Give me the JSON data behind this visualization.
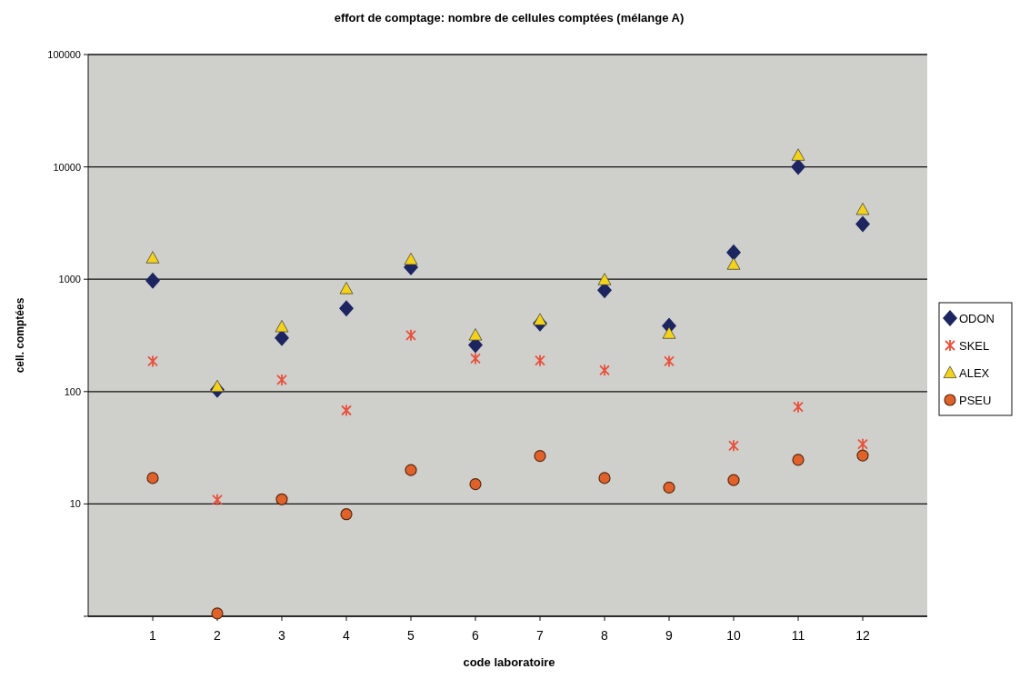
{
  "chart_data": {
    "type": "scatter",
    "title": "effort de comptage: nombre de cellules comptées  (mélange A)",
    "xlabel": "code laboratoire",
    "ylabel": "cell. comptées",
    "x": [
      1,
      2,
      3,
      4,
      5,
      6,
      7,
      8,
      9,
      10,
      11,
      12
    ],
    "xlim": [
      0,
      13
    ],
    "xticks": [
      1,
      2,
      3,
      4,
      5,
      6,
      7,
      8,
      9,
      10,
      11,
      12
    ],
    "ylim": [
      1,
      100000
    ],
    "yticks": [
      {
        "value": 1,
        "label": null
      },
      10,
      100,
      1000,
      10000,
      100000
    ],
    "log": "y",
    "grid": "y",
    "legend": "right",
    "series": [
      {
        "name": "ODON",
        "color": "#1c2560",
        "marker": "diamond",
        "values": [
          970,
          104,
          300,
          550,
          1280,
          260,
          405,
          800,
          385,
          1730,
          10000,
          3100
        ]
      },
      {
        "name": "SKEL",
        "color": "#e8503a",
        "marker": "cross",
        "values": [
          186,
          10.9,
          127,
          68,
          317,
          197,
          189,
          155,
          186,
          33,
          73,
          34
        ]
      },
      {
        "name": "ALEX",
        "color": "#f2d21a",
        "marker": "triangle",
        "values": [
          1550,
          111,
          378,
          825,
          1500,
          319,
          435,
          990,
          330,
          1360,
          12700,
          4180
        ]
      },
      {
        "name": "PSEU",
        "color": "#e0622a",
        "marker": "circle",
        "values": [
          17,
          1.06,
          11,
          8.1,
          20,
          15,
          26.7,
          17,
          14,
          16.3,
          24.7,
          27
        ]
      }
    ]
  }
}
